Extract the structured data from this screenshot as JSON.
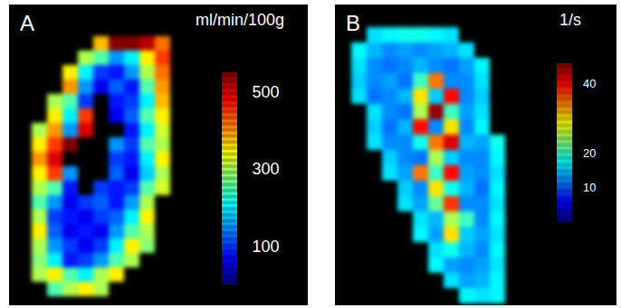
{
  "chart_data": [
    {
      "type": "heatmap",
      "title": "A",
      "colorbar_title": "ml/min/100g",
      "colorbar_range": [
        0,
        550
      ],
      "colorbar_ticks": [
        100,
        300,
        500
      ],
      "tick_labels": false,
      "cells": [
        [
          null,
          null,
          null,
          null,
          380,
          550,
          550,
          520,
          420
        ],
        [
          null,
          null,
          null,
          300,
          250,
          150,
          200,
          350,
          450
        ],
        [
          null,
          null,
          350,
          200,
          100,
          80,
          150,
          300,
          420
        ],
        [
          null,
          null,
          400,
          150,
          60,
          120,
          80,
          250,
          400
        ],
        [
          null,
          300,
          250,
          100,
          null,
          80,
          100,
          200,
          380
        ],
        [
          null,
          350,
          200,
          450,
          null,
          60,
          120,
          250,
          350
        ],
        [
          300,
          400,
          150,
          500,
          null,
          null,
          80,
          200,
          320
        ],
        [
          350,
          450,
          550,
          null,
          null,
          150,
          100,
          250,
          300
        ],
        [
          400,
          500,
          null,
          null,
          null,
          100,
          80,
          200,
          350
        ],
        [
          350,
          450,
          150,
          null,
          null,
          120,
          60,
          180,
          300
        ],
        [
          300,
          250,
          80,
          null,
          100,
          80,
          100,
          250,
          320
        ],
        [
          250,
          150,
          60,
          100,
          120,
          80,
          150,
          300,
          null
        ],
        [
          300,
          100,
          80,
          60,
          100,
          120,
          200,
          350,
          null
        ],
        [
          350,
          120,
          60,
          80,
          60,
          150,
          250,
          300,
          null
        ],
        [
          300,
          150,
          100,
          60,
          100,
          200,
          350,
          280,
          null
        ],
        [
          280,
          200,
          80,
          100,
          150,
          250,
          300,
          null,
          null
        ],
        [
          300,
          350,
          250,
          200,
          300,
          350,
          null,
          null,
          null
        ],
        [
          null,
          250,
          300,
          350,
          300,
          null,
          null,
          null,
          null
        ]
      ]
    },
    {
      "type": "heatmap",
      "title": "B",
      "colorbar_title": "1/s",
      "colorbar_range": [
        0,
        46
      ],
      "colorbar_ticks": [
        10,
        20,
        40
      ],
      "tick_labels": false,
      "cells": [
        [
          null,
          16,
          17,
          18,
          18,
          17,
          16,
          null,
          null,
          null
        ],
        [
          17,
          14,
          12,
          13,
          12,
          13,
          14,
          16,
          null,
          null
        ],
        [
          16,
          12,
          11,
          12,
          14,
          12,
          11,
          13,
          17,
          null
        ],
        [
          15,
          12,
          13,
          11,
          20,
          35,
          12,
          12,
          16,
          null
        ],
        [
          16,
          11,
          12,
          14,
          30,
          15,
          40,
          12,
          15,
          null
        ],
        [
          null,
          16,
          12,
          11,
          25,
          45,
          20,
          13,
          16,
          null
        ],
        [
          null,
          15,
          11,
          14,
          40,
          12,
          30,
          12,
          17,
          null
        ],
        [
          null,
          16,
          12,
          12,
          18,
          35,
          42,
          14,
          13,
          18
        ],
        [
          null,
          null,
          15,
          12,
          11,
          25,
          15,
          12,
          12,
          17
        ],
        [
          null,
          null,
          16,
          13,
          35,
          20,
          40,
          13,
          12,
          16
        ],
        [
          null,
          null,
          null,
          15,
          12,
          30,
          18,
          14,
          11,
          17
        ],
        [
          null,
          null,
          null,
          16,
          13,
          22,
          38,
          12,
          12,
          16
        ],
        [
          null,
          null,
          null,
          null,
          16,
          14,
          25,
          20,
          12,
          17
        ],
        [
          null,
          null,
          null,
          null,
          17,
          13,
          30,
          15,
          13,
          16
        ],
        [
          null,
          null,
          null,
          null,
          null,
          16,
          18,
          14,
          12,
          17
        ],
        [
          null,
          null,
          null,
          null,
          null,
          17,
          13,
          12,
          13,
          16
        ],
        [
          null,
          null,
          null,
          null,
          null,
          null,
          16,
          13,
          14,
          17
        ],
        [
          null,
          null,
          null,
          null,
          null,
          null,
          null,
          17,
          16,
          17
        ]
      ]
    }
  ]
}
